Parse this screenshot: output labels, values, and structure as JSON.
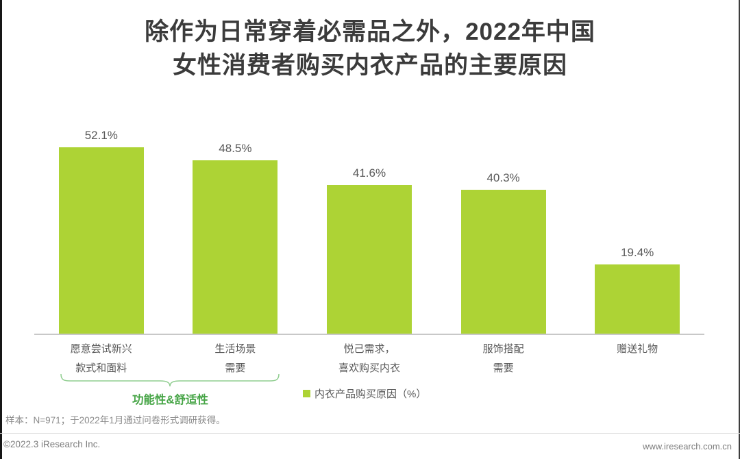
{
  "title": {
    "line1": "除作为日常穿着必需品之外，2022年中国",
    "line2": "女性消费者购买内衣产品的主要原因"
  },
  "chart_data": {
    "type": "bar",
    "title": "除作为日常穿着必需品之外，2022年中国女性消费者购买内衣产品的主要原因",
    "categories": [
      "愿意尝试新兴款式和面料",
      "生活场景需要",
      "悦己需求，喜欢购买内衣",
      "服饰搭配需要",
      "赠送礼物"
    ],
    "category_lines": [
      [
        "愿意尝试新兴",
        "款式和面料"
      ],
      [
        "生活场景",
        "需要"
      ],
      [
        "悦己需求，",
        "喜欢购买内衣"
      ],
      [
        "服饰搭配",
        "需要"
      ],
      [
        "赠送礼物"
      ]
    ],
    "values": [
      52.1,
      48.5,
      41.6,
      40.3,
      19.4
    ],
    "value_labels": [
      "52.1%",
      "48.5%",
      "41.6%",
      "40.3%",
      "19.4%"
    ],
    "unit": "%",
    "ylim": [
      0,
      60
    ],
    "grid": false,
    "bar_color": "#add335",
    "legend": "内衣产品购买原因（%）",
    "legend_position": "bottom",
    "annotation": {
      "bracket_label": "功能性&舒适性",
      "bracket_spans_categories": [
        "愿意尝试新兴款式和面料",
        "生活场景需要"
      ],
      "bracket_line_color": "#8fcd8f",
      "bracket_label_color": "#47a547"
    }
  },
  "footnote": "样本：N=971；于2022年1月通过问卷形式调研获得。",
  "footer": {
    "left": "©2022.3 iResearch Inc.",
    "right": "www.iresearch.com.cn"
  },
  "colors": {
    "bar_green": "#add335",
    "axis_line": "#c8c8c8",
    "title_text": "#3b3b3b",
    "label_text": "#595959"
  }
}
